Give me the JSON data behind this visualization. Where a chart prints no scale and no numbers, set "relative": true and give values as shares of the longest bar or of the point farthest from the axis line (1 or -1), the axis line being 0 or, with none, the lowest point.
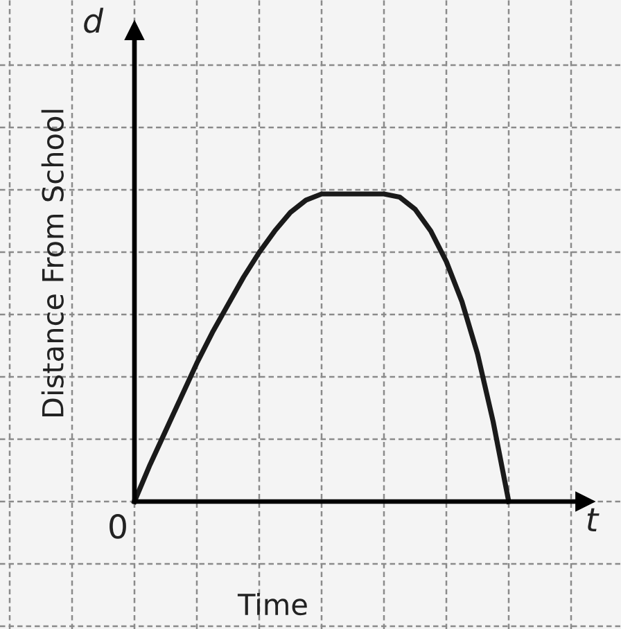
{
  "chart_data": {
    "type": "line",
    "relative": true,
    "xlabel": "Time",
    "ylabel": "Distance From School",
    "annotations": [
      "d",
      "t",
      "0"
    ],
    "categories": [
      null,
      null,
      null,
      null,
      null,
      null,
      null,
      null,
      null,
      null,
      null,
      null,
      null,
      null,
      null,
      null,
      null,
      null,
      null,
      null,
      null,
      null,
      null,
      null,
      null
    ],
    "series": [
      {
        "color": "#1a1a1a",
        "values": [
          0,
          0.12,
          0.23,
          0.34,
          0.45,
          0.55,
          0.64,
          0.73,
          0.81,
          0.88,
          0.94,
          0.98,
          1,
          1,
          1,
          1,
          1,
          0.99,
          0.95,
          0.88,
          0.78,
          0.65,
          0.48,
          0.26,
          0
        ]
      }
    ],
    "grid": true,
    "tick_labels": false,
    "marker": "none",
    "line_style": "solid"
  }
}
